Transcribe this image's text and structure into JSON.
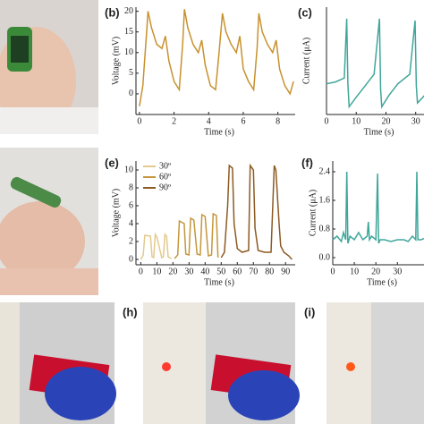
{
  "chart_data": [
    {
      "type": "line",
      "panel_label": "(b)",
      "x_label": "Time (s)",
      "y_label": "Voltage (mV)",
      "xlim": [
        -0.2,
        9
      ],
      "ylim": [
        -5,
        21
      ],
      "xticks": [
        0,
        2,
        4,
        6,
        8
      ],
      "yticks": [
        0,
        5,
        10,
        15,
        20
      ],
      "series": [
        {
          "color": "#c8912e",
          "x": [
            0,
            0.2,
            0.4,
            0.5,
            0.7,
            1.0,
            1.3,
            1.5,
            1.7,
            2.0,
            2.3,
            2.5,
            2.6,
            2.8,
            3.1,
            3.4,
            3.6,
            3.8,
            4.1,
            4.4,
            4.6,
            4.8,
            5.0,
            5.3,
            5.6,
            5.8,
            6.0,
            6.3,
            6.6,
            6.8,
            6.9,
            7.1,
            7.4,
            7.7,
            7.9,
            8.1,
            8.4,
            8.7,
            8.9
          ],
          "values": [
            -3,
            2,
            14,
            20,
            16,
            12,
            11,
            14,
            8,
            3,
            1,
            12,
            20.5,
            16,
            12,
            10,
            13,
            7,
            2,
            1,
            10,
            19.5,
            15,
            12,
            10,
            14,
            6,
            3,
            1,
            11,
            19.5,
            15,
            12,
            10,
            13,
            6,
            2,
            0,
            3
          ]
        }
      ]
    },
    {
      "type": "line",
      "panel_label": "(c)",
      "x_label": "Time (s)",
      "y_label": "Current (μA)",
      "xlim": [
        0,
        34
      ],
      "ylim": [
        -1.3,
        4.3
      ],
      "xticks": [
        0,
        10,
        20,
        30
      ],
      "series": [
        {
          "color": "#3fa69a",
          "x": [
            0,
            3,
            6,
            6.8,
            7.2,
            7.6,
            10,
            13,
            16,
            17.8,
            18.2,
            18.6,
            21,
            24,
            28,
            29.8,
            30.2,
            30.6,
            33
          ],
          "values": [
            0.3,
            0.4,
            0.6,
            3.7,
            0.3,
            -0.9,
            -0.4,
            0.2,
            0.8,
            3.7,
            0,
            -0.9,
            -0.3,
            0.3,
            0.8,
            3.6,
            0.2,
            -0.7,
            -0.3
          ]
        }
      ]
    },
    {
      "type": "line",
      "panel_label": "(e)",
      "x_label": "Time (s)",
      "y_label": "Voltage (mV)",
      "xlim": [
        -3,
        96
      ],
      "ylim": [
        -0.6,
        11
      ],
      "xticks": [
        0,
        10,
        20,
        30,
        40,
        50,
        60,
        70,
        80,
        90
      ],
      "yticks": [
        0,
        2,
        4,
        6,
        8,
        10
      ],
      "legend": "upper left",
      "series": [
        {
          "name": "30º",
          "color": "#e3c98c",
          "x": [
            0,
            1.5,
            2.5,
            6,
            7,
            8,
            9,
            10,
            13,
            14,
            15,
            16,
            17,
            19
          ],
          "values": [
            0,
            0.5,
            2.7,
            2.6,
            0.3,
            0.2,
            2.8,
            2.5,
            0.2,
            0.3,
            2.8,
            2.6,
            0.3,
            0.1
          ]
        },
        {
          "name": "60º",
          "color": "#c4973c",
          "x": [
            21,
            23,
            24,
            27,
            28,
            30,
            31,
            33,
            35,
            37,
            38,
            40,
            42,
            44,
            45,
            47,
            48
          ],
          "values": [
            0.1,
            0.5,
            4.3,
            4,
            0.6,
            0.5,
            4.6,
            4.4,
            0.6,
            0.5,
            5,
            4.8,
            0.4,
            0.5,
            5.1,
            4.9,
            0.2
          ]
        },
        {
          "name": "90º",
          "color": "#8d5a22",
          "x": [
            50,
            52,
            54,
            55,
            57,
            58,
            60,
            63,
            67,
            68,
            70,
            71,
            73,
            77,
            81,
            83,
            84,
            86,
            87,
            89,
            92,
            94
          ],
          "values": [
            0.2,
            0.8,
            6,
            10.5,
            10.2,
            4,
            1.2,
            0.8,
            1,
            10.5,
            10,
            3.5,
            1,
            0.8,
            0.8,
            10.5,
            10,
            4,
            1.5,
            0.8,
            0.4,
            0
          ]
        }
      ]
    },
    {
      "type": "line",
      "panel_label": "(f)",
      "x_label": "Time (s)",
      "y_label": "Current (μA)",
      "xlim": [
        0,
        44
      ],
      "ylim": [
        -0.2,
        2.7
      ],
      "xticks": [
        0,
        10,
        20,
        30
      ],
      "yticks": [
        {
          "value": 0,
          "label": "0.0"
        },
        {
          "value": 0.8,
          "label": "0.8"
        },
        {
          "value": 1.6,
          "label": "1.6"
        },
        {
          "value": 2.4,
          "label": "2.4"
        }
      ],
      "series": [
        {
          "color": "#3fa69a",
          "x": [
            0,
            2,
            4,
            5,
            6,
            6.5,
            7,
            8,
            10,
            12,
            14,
            16,
            16.5,
            17,
            18,
            20,
            20.8,
            21.3,
            22,
            24,
            27,
            30,
            33,
            35,
            37,
            38.5,
            39,
            39.5,
            41,
            43
          ],
          "values": [
            0.5,
            0.6,
            0.45,
            0.7,
            0.5,
            2.4,
            0.4,
            0.6,
            0.5,
            0.7,
            0.5,
            0.6,
            1.0,
            0.5,
            0.6,
            0.5,
            2.35,
            0.4,
            0.5,
            0.5,
            0.45,
            0.5,
            0.5,
            0.45,
            0.6,
            0.5,
            2.4,
            0.5,
            0.5,
            0.55
          ]
        }
      ]
    }
  ],
  "photo_labels": [
    "(h)",
    "(i)"
  ]
}
